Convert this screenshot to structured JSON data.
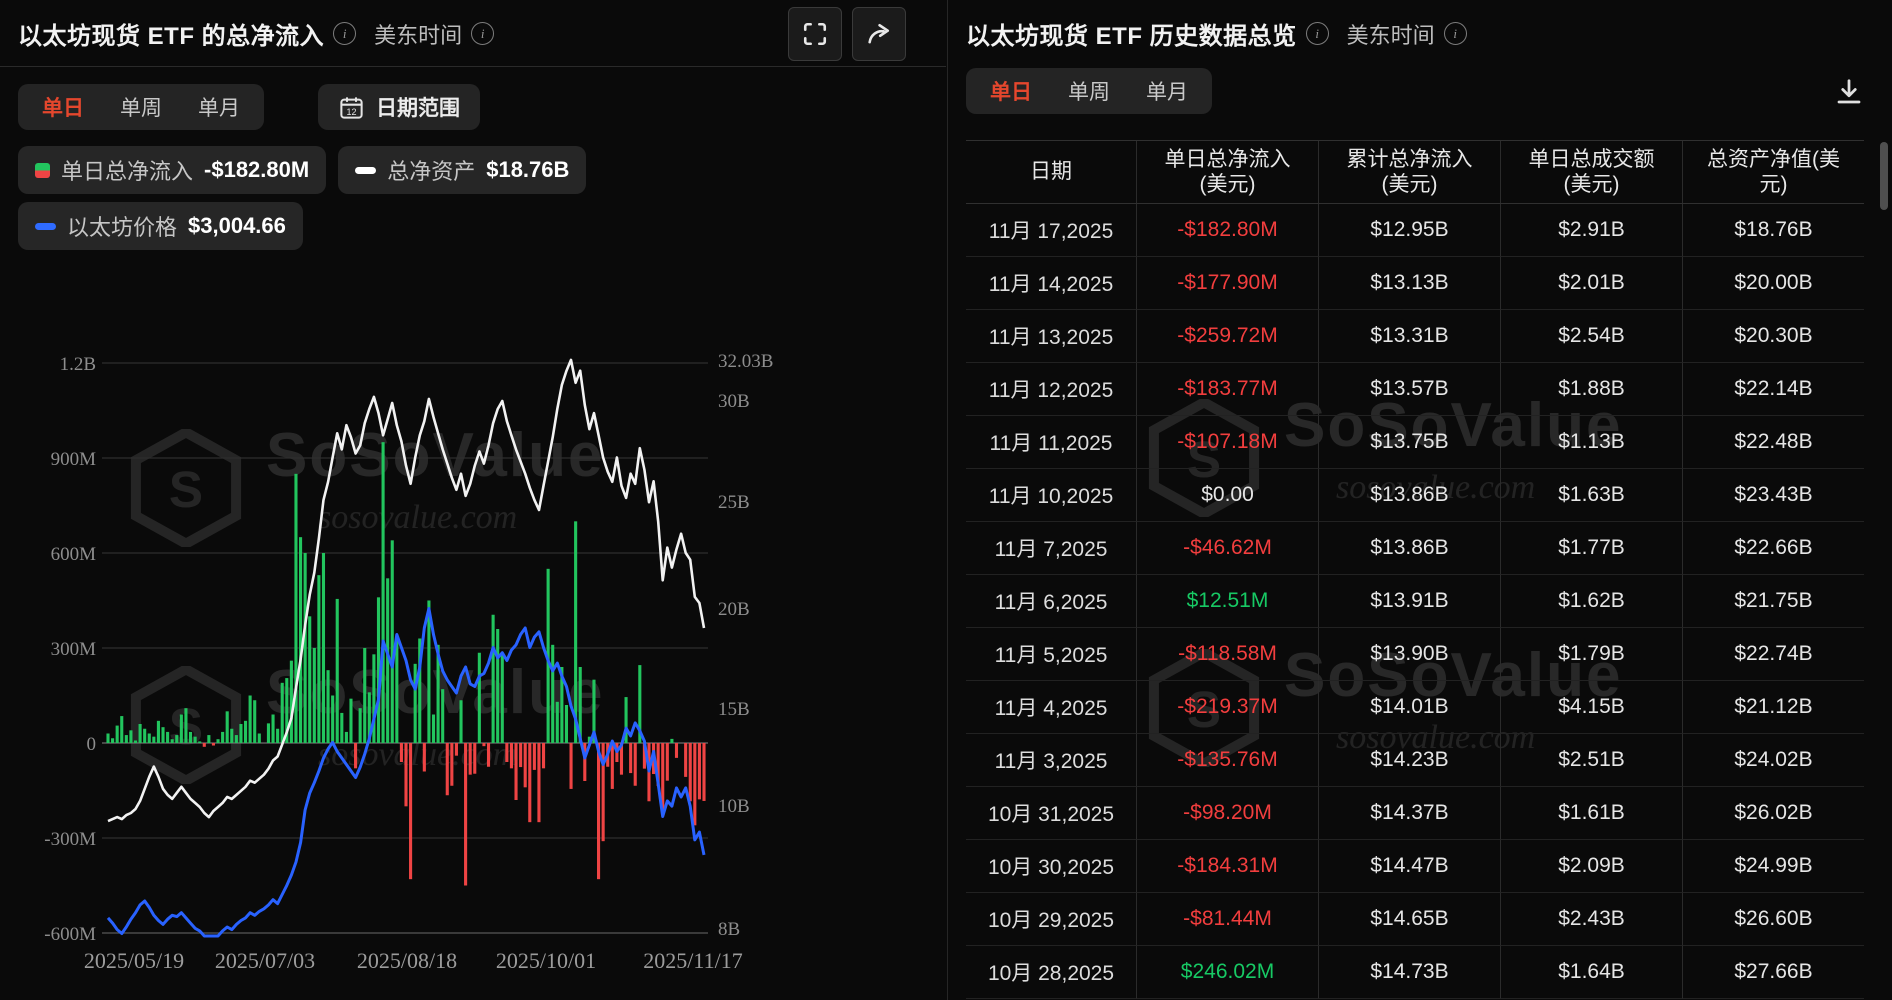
{
  "left_panel": {
    "title": "以太坊现货 ETF 的总净流入",
    "timezone": "美东时间",
    "tabs": [
      "单日",
      "单周",
      "单月"
    ],
    "active_tab": "单日",
    "date_range_label": "日期范围",
    "legend": [
      {
        "label": "单日总净流入",
        "value": "-$182.80M",
        "marker": "green-red-square"
      },
      {
        "label": "总净资产",
        "value": "$18.76B",
        "marker": "white-dash"
      },
      {
        "label": "以太坊价格",
        "value": "$3,004.66",
        "marker": "blue-dash"
      }
    ]
  },
  "right_panel": {
    "title": "以太坊现货 ETF 历史数据总览",
    "timezone": "美东时间",
    "tabs": [
      "单日",
      "单周",
      "单月"
    ],
    "active_tab": "单日",
    "table": {
      "columns": [
        {
          "l1": "日期",
          "l2": ""
        },
        {
          "l1": "单日总净流入",
          "l2": "(美元)"
        },
        {
          "l1": "累计总净流入",
          "l2": "(美元)"
        },
        {
          "l1": "单日总成交额",
          "l2": "(美元)"
        },
        {
          "l1": "总资产净值(美",
          "l2": "元)"
        }
      ],
      "rows": [
        {
          "date": "11月 17,2025",
          "flow": "-$182.80M",
          "tone": "neg",
          "cum": "$12.95B",
          "vol": "$2.91B",
          "nav": "$18.76B"
        },
        {
          "date": "11月 14,2025",
          "flow": "-$177.90M",
          "tone": "neg",
          "cum": "$13.13B",
          "vol": "$2.01B",
          "nav": "$20.00B"
        },
        {
          "date": "11月 13,2025",
          "flow": "-$259.72M",
          "tone": "neg",
          "cum": "$13.31B",
          "vol": "$2.54B",
          "nav": "$20.30B"
        },
        {
          "date": "11月 12,2025",
          "flow": "-$183.77M",
          "tone": "neg",
          "cum": "$13.57B",
          "vol": "$1.88B",
          "nav": "$22.14B"
        },
        {
          "date": "11月 11,2025",
          "flow": "-$107.18M",
          "tone": "neg",
          "cum": "$13.75B",
          "vol": "$1.13B",
          "nav": "$22.48B"
        },
        {
          "date": "11月 10,2025",
          "flow": "$0.00",
          "tone": "zero",
          "cum": "$13.86B",
          "vol": "$1.63B",
          "nav": "$23.43B"
        },
        {
          "date": "11月 7,2025",
          "flow": "-$46.62M",
          "tone": "neg",
          "cum": "$13.86B",
          "vol": "$1.77B",
          "nav": "$22.66B"
        },
        {
          "date": "11月 6,2025",
          "flow": "$12.51M",
          "tone": "pos",
          "cum": "$13.91B",
          "vol": "$1.62B",
          "nav": "$21.75B"
        },
        {
          "date": "11月 5,2025",
          "flow": "-$118.58M",
          "tone": "neg",
          "cum": "$13.90B",
          "vol": "$1.79B",
          "nav": "$22.74B"
        },
        {
          "date": "11月 4,2025",
          "flow": "-$219.37M",
          "tone": "neg",
          "cum": "$14.01B",
          "vol": "$4.15B",
          "nav": "$21.12B"
        },
        {
          "date": "11月 3,2025",
          "flow": "-$135.76M",
          "tone": "neg",
          "cum": "$14.23B",
          "vol": "$2.51B",
          "nav": "$24.02B"
        },
        {
          "date": "10月 31,2025",
          "flow": "-$98.20M",
          "tone": "neg",
          "cum": "$14.37B",
          "vol": "$1.61B",
          "nav": "$26.02B"
        },
        {
          "date": "10月 30,2025",
          "flow": "-$184.31M",
          "tone": "neg",
          "cum": "$14.47B",
          "vol": "$2.09B",
          "nav": "$24.99B"
        },
        {
          "date": "10月 29,2025",
          "flow": "-$81.44M",
          "tone": "neg",
          "cum": "$14.65B",
          "vol": "$2.43B",
          "nav": "$26.60B"
        },
        {
          "date": "10月 28,2025",
          "flow": "$246.02M",
          "tone": "pos",
          "cum": "$14.73B",
          "vol": "$1.64B",
          "nav": "$27.66B"
        }
      ]
    }
  },
  "watermark": {
    "brand": "SoSoValue",
    "domain": "sosovalue.com"
  },
  "colors": {
    "accent_red": "#e5472d",
    "bar_green": "#22c55e",
    "bar_red": "#ef4444",
    "line_white": "#f2f2f2",
    "line_blue": "#2962ff",
    "value_red": "#f23e3e",
    "value_green": "#17c964"
  },
  "chart_data": {
    "type": "combo (bar + 2 lines, dual axis)",
    "title": "以太坊现货 ETF 的总净流入",
    "x_range": [
      "2025/05/19",
      "2025/11/17"
    ],
    "x_tick_labels": [
      "2025/05/19",
      "2025/07/03",
      "2025/08/18",
      "2025/10/01",
      "2025/11/17"
    ],
    "left_axis": {
      "unit": "USD",
      "ticks": [
        "1.2B",
        "900M",
        "600M",
        "300M",
        "0",
        "-300M",
        "-600M"
      ],
      "tick_values_M": [
        1200,
        900,
        600,
        300,
        0,
        -300,
        -600
      ]
    },
    "right_axis": {
      "unit": "USD",
      "ticks": [
        "32.03B",
        "30B",
        "25B",
        "20B",
        "15B",
        "10B",
        "8B"
      ],
      "max": "32.03B",
      "min": "8B"
    },
    "grid": true,
    "legend_position": "top",
    "series": [
      {
        "name": "单日总净流入",
        "type": "bar",
        "unit": "USD millions",
        "latest": -182.8,
        "values": [
          30,
          15,
          55,
          85,
          25,
          40,
          8,
          60,
          45,
          30,
          20,
          70,
          50,
          35,
          12,
          25,
          90,
          110,
          35,
          20,
          5,
          -12,
          25,
          -8,
          12,
          35,
          100,
          45,
          25,
          60,
          70,
          150,
          135,
          30,
          0,
          62,
          90,
          45,
          190,
          205,
          260,
          850,
          650,
          600,
          400,
          300,
          530,
          600,
          230,
          150,
          455,
          95,
          35,
          140,
          -80,
          110,
          300,
          160,
          280,
          460,
          950,
          520,
          640,
          330,
          -60,
          -200,
          -430,
          250,
          330,
          -90,
          450,
          90,
          310,
          170,
          -165,
          -135,
          -40,
          135,
          -450,
          -100,
          -97,
          285,
          -10,
          -75,
          405,
          360,
          280,
          -60,
          -80,
          -180,
          -76,
          -140,
          -250,
          -85,
          -250,
          -80,
          550,
          310,
          130,
          240,
          120,
          -145,
          700,
          240,
          -120,
          20,
          200,
          -430,
          -310,
          -75,
          -145,
          -60,
          -100,
          145,
          -95,
          -135,
          246,
          -81,
          -184,
          -98,
          -136,
          -219,
          -119,
          13,
          -47,
          0,
          -107,
          -184,
          -260,
          -178,
          -183
        ]
      },
      {
        "name": "总净资产",
        "type": "line",
        "unit": "USD billions",
        "latest": 18.76,
        "peak": 32.03,
        "values": [
          9.2,
          9.3,
          9.4,
          9.3,
          9.5,
          9.6,
          9.8,
          10.2,
          10.8,
          11.4,
          11.9,
          11.4,
          10.8,
          10.5,
          10.3,
          10.6,
          10.9,
          10.6,
          10.3,
          10.1,
          9.9,
          9.6,
          9.4,
          9.7,
          9.9,
          10.1,
          10.4,
          10.3,
          10.5,
          10.7,
          10.9,
          11.2,
          11.1,
          11.3,
          11.5,
          11.8,
          12.2,
          12.4,
          13.0,
          13.6,
          14.3,
          15.8,
          17.2,
          18.9,
          20.4,
          21.5,
          23.2,
          25.1,
          26.0,
          27.2,
          28.4,
          27.6,
          28.8,
          28.2,
          27.4,
          27.8,
          28.9,
          29.6,
          30.2,
          29.4,
          28.3,
          29.1,
          29.9,
          28.8,
          28.0,
          26.8,
          25.9,
          27.2,
          28.3,
          29.0,
          30.1,
          29.2,
          28.4,
          27.6,
          26.9,
          26.2,
          25.6,
          26.4,
          25.3,
          25.9,
          26.8,
          27.5,
          26.9,
          27.8,
          28.9,
          29.6,
          30.0,
          29.0,
          28.3,
          27.6,
          27.0,
          26.4,
          25.7,
          25.1,
          24.6,
          25.8,
          27.0,
          28.2,
          29.6,
          30.8,
          31.5,
          32.03,
          30.9,
          31.5,
          29.8,
          28.6,
          29.4,
          28.3,
          27.2,
          26.5,
          26.0,
          27.2,
          25.8,
          25.2,
          26.4,
          25.9,
          27.66,
          26.6,
          24.99,
          26.02,
          24.02,
          21.12,
          22.74,
          21.75,
          22.66,
          23.43,
          22.48,
          22.14,
          20.3,
          20.0,
          18.76
        ]
      },
      {
        "name": "以太坊价格",
        "type": "line",
        "unit": "USD",
        "latest": 3004.66,
        "values": [
          2520,
          2480,
          2430,
          2400,
          2450,
          2510,
          2560,
          2620,
          2650,
          2600,
          2540,
          2500,
          2470,
          2510,
          2540,
          2530,
          2560,
          2520,
          2480,
          2440,
          2420,
          2300,
          2230,
          2280,
          2350,
          2420,
          2450,
          2430,
          2470,
          2500,
          2520,
          2560,
          2540,
          2570,
          2590,
          2620,
          2660,
          2630,
          2700,
          2770,
          2850,
          2950,
          3100,
          3350,
          3480,
          3560,
          3650,
          3750,
          3820,
          3870,
          3800,
          3750,
          3700,
          3650,
          3600,
          3680,
          3780,
          3900,
          4050,
          4200,
          4650,
          4550,
          4450,
          4700,
          4600,
          4500,
          4350,
          4280,
          4450,
          4750,
          4900,
          4700,
          4550,
          4420,
          4350,
          4300,
          4250,
          4380,
          4450,
          4320,
          4300,
          4380,
          4400,
          4480,
          4600,
          4520,
          4560,
          4500,
          4580,
          4620,
          4700,
          4750,
          4600,
          4680,
          4720,
          4600,
          4500,
          4420,
          4480,
          4380,
          4300,
          4150,
          4050,
          3900,
          3750,
          3850,
          3950,
          3800,
          3700,
          3780,
          3880,
          3800,
          3850,
          3980,
          3920,
          4020,
          3960,
          3880,
          3650,
          3800,
          3550,
          3300,
          3420,
          3380,
          3520,
          3450,
          3520,
          3380,
          3120,
          3180,
          3004.66
        ]
      }
    ]
  }
}
